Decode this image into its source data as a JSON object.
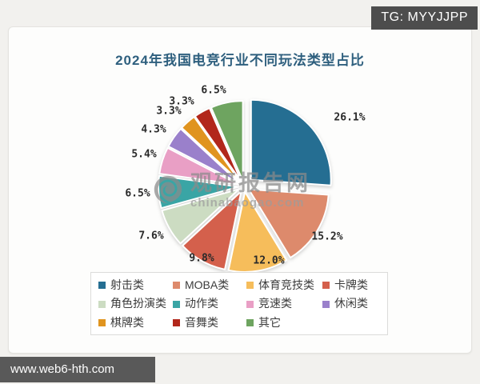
{
  "overlays": {
    "tg_badge": "TG: MYYJJPP",
    "site_bar": "www.web6-hth.com"
  },
  "watermark": {
    "name": "观研报告网",
    "domain": "chinabaogao.com",
    "logo": "swirl-wave-icon",
    "color": "#8b8b8b"
  },
  "chart_data": {
    "type": "pie",
    "title": "2024年我国电竞行业不同玩法类型占比",
    "unit": "%",
    "legend_position": "bottom",
    "style": "exploded",
    "slices": [
      {
        "label": "射击类",
        "value": 26.1,
        "color": "#256e92"
      },
      {
        "label": "MOBA类",
        "value": 15.2,
        "color": "#dd8a6c"
      },
      {
        "label": "体育竞技类",
        "value": 12.0,
        "color": "#f6bd5b"
      },
      {
        "label": "卡牌类",
        "value": 9.8,
        "color": "#d4604c"
      },
      {
        "label": "角色扮演类",
        "value": 7.6,
        "color": "#ccdcc2"
      },
      {
        "label": "动作类",
        "value": 6.5,
        "color": "#3aa5a5"
      },
      {
        "label": "竞速类",
        "value": 5.4,
        "color": "#e99fc5"
      },
      {
        "label": "休闲类",
        "value": 4.3,
        "color": "#9a80cb"
      },
      {
        "label": "棋牌类",
        "value": 3.3,
        "color": "#e0941f"
      },
      {
        "label": "音舞类",
        "value": 3.3,
        "color": "#b2271b"
      },
      {
        "label": "其它",
        "value": 6.5,
        "color": "#6ea460"
      }
    ]
  }
}
